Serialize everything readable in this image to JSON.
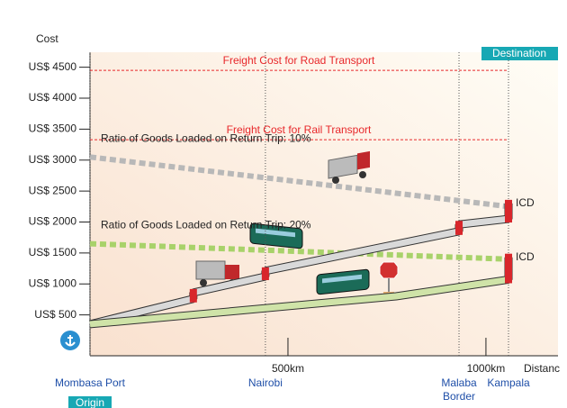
{
  "chart_data": {
    "type": "line",
    "y_label": "Cost",
    "x_label": "Distanc",
    "xlim": [
      0,
      1182
    ],
    "ylim": [
      -160,
      4742
    ],
    "yticks": [
      {
        "value": 500,
        "label": "US$  500"
      },
      {
        "value": 1000,
        "label": "US$ 1000"
      },
      {
        "value": 1500,
        "label": "US$ 1500"
      },
      {
        "value": 2000,
        "label": "US$ 2000"
      },
      {
        "value": 2500,
        "label": "US$ 2500"
      },
      {
        "value": 3000,
        "label": "US$ 3000"
      },
      {
        "value": 3500,
        "label": "US$ 3500"
      },
      {
        "value": 4000,
        "label": "US$ 4000"
      },
      {
        "value": 4500,
        "label": "US$ 4500"
      }
    ],
    "xticks": [
      {
        "value": 500,
        "label": "500km"
      },
      {
        "value": 1000,
        "label": "1000km"
      }
    ],
    "places": [
      {
        "name": "Mombasa Port",
        "x": 0
      },
      {
        "name": "Nairobi",
        "x": 443
      },
      {
        "name": "Malaba Border",
        "x": 932
      },
      {
        "name": "Kampala",
        "x": 1057
      }
    ],
    "origin_label": "Origin",
    "destination_label": "Destination",
    "reference_lines": [
      {
        "label": "Freight Cost for Road Transport",
        "value": 4450,
        "color": "#e8282b"
      },
      {
        "label": "Freight Cost for Rail Transport",
        "value": 3330,
        "color": "#e8282b"
      }
    ],
    "series": [
      {
        "name": "Ratio of Goods Loaded on Return Trip: 10%",
        "color": "#b8b8b8",
        "style": "dotted",
        "x": [
          0,
          1057
        ],
        "values": [
          3050,
          2250
        ]
      },
      {
        "name": "Ratio of Goods Loaded on Return Trip: 20%",
        "color": "#a8d26a",
        "style": "dotted",
        "x": [
          0,
          1057
        ],
        "values": [
          1650,
          1400
        ]
      },
      {
        "color": "#d9d9d9",
        "style": "band",
        "annotation": "ICD",
        "x": [
          0,
          261,
          261,
          443,
          443,
          932,
          932,
          1057,
          1057
        ],
        "values": [
          350,
          760,
          860,
          1120,
          1210,
          1850,
          1960,
          2050,
          2300
        ]
      },
      {
        "color": "#cfe3a8",
        "style": "band",
        "annotation": "ICD",
        "x": [
          0,
          773,
          1057,
          1057
        ],
        "values": [
          350,
          800,
          1070,
          1430
        ]
      }
    ]
  }
}
